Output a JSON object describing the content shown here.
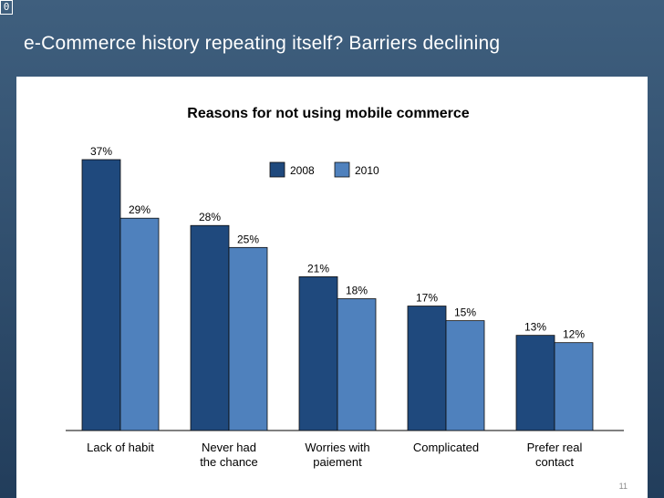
{
  "corner_badge": "0",
  "slide": {
    "title": "e-Commerce history repeating itself?  Barriers declining",
    "page_number": "11"
  },
  "chart_data": {
    "type": "bar",
    "title": "Reasons for not using mobile commerce",
    "categories": [
      [
        "Lack of habit"
      ],
      [
        "Never had",
        "the chance"
      ],
      [
        "Worries with",
        "paiement"
      ],
      [
        "Complicated"
      ],
      [
        "Prefer real",
        "contact"
      ]
    ],
    "series": [
      {
        "name": "2008",
        "values": [
          37,
          28,
          21,
          17,
          13
        ],
        "labels": [
          "37%",
          "28%",
          "21%",
          "17%",
          "13%"
        ],
        "color": "#1f497d"
      },
      {
        "name": "2010",
        "values": [
          29,
          25,
          18,
          15,
          12
        ],
        "labels": [
          "29%",
          "25%",
          "18%",
          "15%",
          "12%"
        ],
        "color": "#4f81bd"
      }
    ],
    "ylim": [
      0,
      37
    ],
    "xlabel": "",
    "ylabel": "",
    "grid": false,
    "legend_position": "top-right"
  }
}
